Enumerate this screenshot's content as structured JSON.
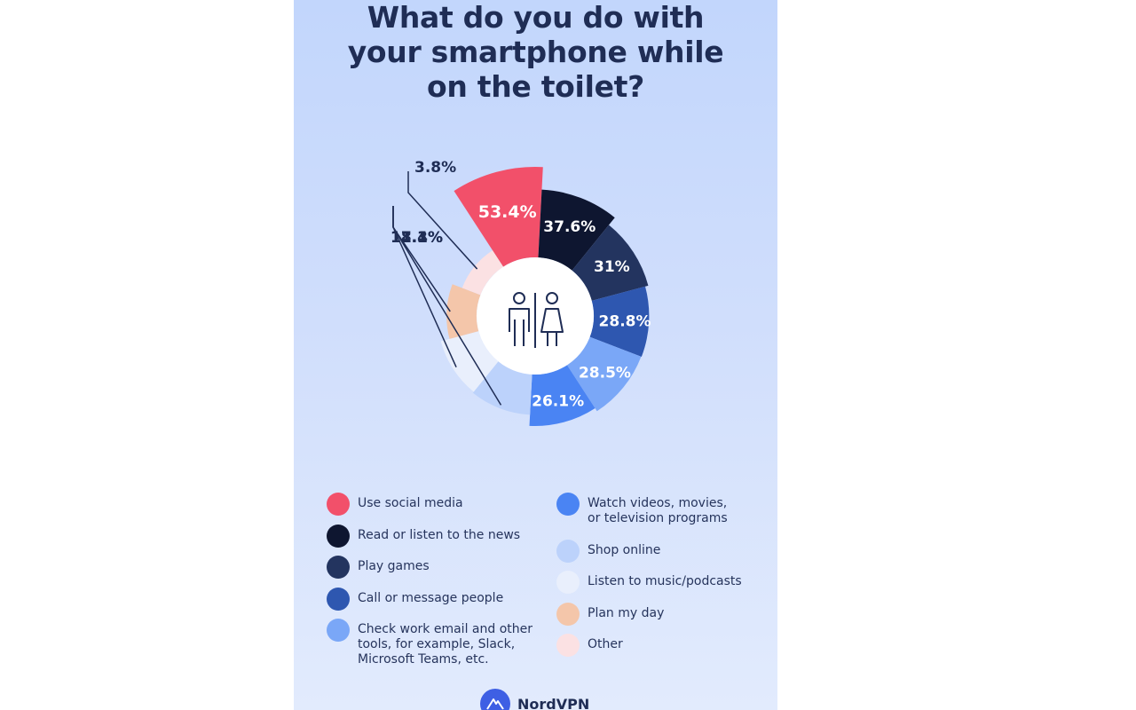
{
  "title_lines": [
    "What do you do with",
    "your smartphone while",
    "on the toilet?"
  ],
  "brand": "NordVPN",
  "chart_data": {
    "type": "pie",
    "style": "donut",
    "title": "What do you do with your smartphone while on the toilet?",
    "unit": "%",
    "series": [
      {
        "label": "Use social media",
        "value": 53.4,
        "display": "53.4%",
        "color": "#f2506a",
        "text_color": "#ffffff"
      },
      {
        "label": "Read or listen to the news",
        "value": 37.6,
        "display": "37.6%",
        "color": "#0e1630",
        "text_color": "#ffffff"
      },
      {
        "label": "Play games",
        "value": 31,
        "display": "31%",
        "color": "#23345f",
        "text_color": "#ffffff"
      },
      {
        "label": "Call or message people",
        "value": 28.8,
        "display": "28.8%",
        "color": "#2e57b0",
        "text_color": "#ffffff"
      },
      {
        "label": "Check work email and other tools, for example, Slack, Microsoft Teams, etc.",
        "value": 28.5,
        "display": "28.5%",
        "color": "#7aa7f7",
        "text_color": "#ffffff"
      },
      {
        "label": "Watch videos, movies, or television programs",
        "value": 26.1,
        "display": "26.1%",
        "color": "#4a84f3",
        "text_color": "#ffffff"
      },
      {
        "label": "Shop online",
        "value": 18.3,
        "display": "18.3%",
        "color": "#bcd2fb",
        "text_color": "#1f2d55"
      },
      {
        "label": "Listen to music/podcasts",
        "value": 17.4,
        "display": "17.4%",
        "color": "#e9effc",
        "text_color": "#1f2d55"
      },
      {
        "label": "Plan my day",
        "value": 11.1,
        "display": "11.1%",
        "color": "#f4c6aa",
        "text_color": "#1f2d55"
      },
      {
        "label": "Other",
        "value": 3.8,
        "display": "3.8%",
        "color": "#fbe1e3",
        "text_color": "#1f2d55"
      }
    ]
  },
  "legend": {
    "left": [
      {
        "label_lines": [
          "Use social media"
        ],
        "color": "#f2506a"
      },
      {
        "label_lines": [
          "Read or listen to the news"
        ],
        "color": "#0e1630"
      },
      {
        "label_lines": [
          "Play games"
        ],
        "color": "#23345f"
      },
      {
        "label_lines": [
          "Call or message people"
        ],
        "color": "#2e57b0"
      },
      {
        "label_lines": [
          "Check work email and other",
          "tools, for example, Slack,",
          "Microsoft Teams, etc."
        ],
        "color": "#7aa7f7"
      }
    ],
    "right": [
      {
        "label_lines": [
          "Watch videos, movies,",
          "or television programs"
        ],
        "color": "#4a84f3"
      },
      {
        "label_lines": [
          "Shop online"
        ],
        "color": "#bcd2fb"
      },
      {
        "label_lines": [
          "Listen to music/podcasts"
        ],
        "color": "#e9effc"
      },
      {
        "label_lines": [
          "Plan my day"
        ],
        "color": "#f4c6aa"
      },
      {
        "label_lines": [
          "Other"
        ],
        "color": "#fbe1e3"
      }
    ]
  },
  "center_icon": "restroom-icon",
  "brand_icon": "nordvpn-mountain-logo-icon"
}
